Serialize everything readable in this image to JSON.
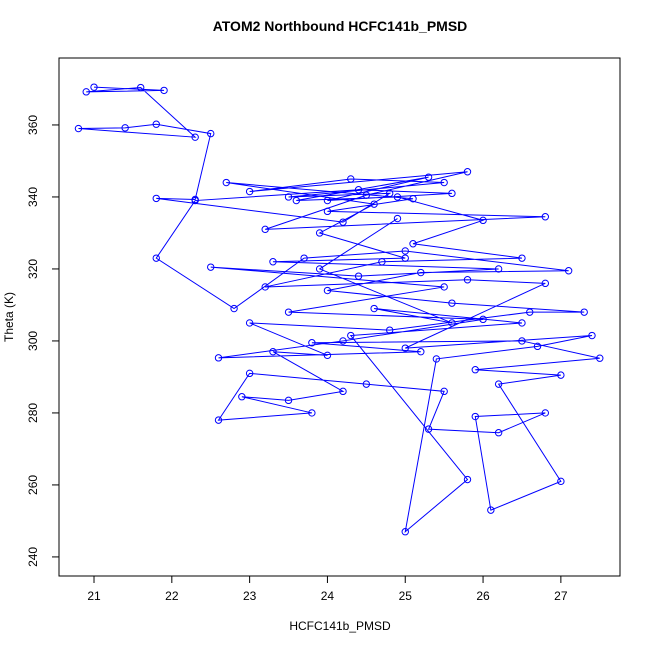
{
  "chart_data": {
    "type": "line",
    "title": "ATOM2 Northbound HCFC141b_PMSD",
    "x_label": "HCFC141b_PMSD",
    "y_label": "Theta (K)",
    "color": "#0000ff",
    "markers": true,
    "xlim": [
      20.55,
      27.76
    ],
    "ylim": [
      234.7,
      378.6
    ],
    "xticks": [
      21,
      22,
      23,
      24,
      25,
      26,
      27
    ],
    "yticks": [
      240,
      260,
      280,
      300,
      320,
      340,
      360
    ],
    "x": [
      21.0,
      21.9,
      20.9,
      21.6,
      22.3,
      20.8,
      21.4,
      21.8,
      22.5,
      22.3,
      21.8,
      24.2,
      24.8,
      23.5,
      25.5,
      24.3,
      23.0,
      25.8,
      24.5,
      23.2,
      26.8,
      24.0,
      25.1,
      22.7,
      24.6,
      23.9,
      25.0,
      23.3,
      26.2,
      24.4,
      22.5,
      25.5,
      23.5,
      26.0,
      24.2,
      22.6,
      25.2,
      23.8,
      26.5,
      27.5,
      25.9,
      27.0,
      26.2,
      27.0,
      26.1,
      25.9,
      26.8,
      26.2,
      25.3,
      25.5,
      24.5,
      23.0,
      22.6,
      23.8,
      22.9,
      23.5,
      24.2,
      23.3,
      24.0,
      23.0,
      24.8,
      26.6,
      27.3,
      25.6,
      24.0,
      25.2,
      27.1,
      25.0,
      23.7,
      22.8,
      21.8,
      22.3,
      24.4,
      25.6,
      24.0,
      25.3,
      23.6,
      24.9,
      26.0,
      25.1,
      26.5,
      24.7,
      23.2,
      25.8,
      26.8,
      25.0,
      27.4,
      26.7,
      25.4,
      25.0,
      25.8,
      24.3,
      26.5,
      24.6,
      25.6,
      23.9,
      24.9
    ],
    "values": [
      370.5,
      369.6,
      369.2,
      370.4,
      356.6,
      359.0,
      359.2,
      360.2,
      357.6,
      339.3,
      339.6,
      333.0,
      341.0,
      340.0,
      344.0,
      345.0,
      341.5,
      347.0,
      340.5,
      331.0,
      334.5,
      336.0,
      339.5,
      344.0,
      338.0,
      330.0,
      323.0,
      322.0,
      320.0,
      318.0,
      320.5,
      315.0,
      308.0,
      306.0,
      300.0,
      295.3,
      297.0,
      299.5,
      300.0,
      295.2,
      292.0,
      290.5,
      288.0,
      261.0,
      253.0,
      279.0,
      280.0,
      274.5,
      275.5,
      286.0,
      288.0,
      291.0,
      278.0,
      280.0,
      284.5,
      283.5,
      286.0,
      297.0,
      296.0,
      305.0,
      303.0,
      308.0,
      308.0,
      310.5,
      314.0,
      319.0,
      319.5,
      325.0,
      323.0,
      309.0,
      323.0,
      339.0,
      342.0,
      341.0,
      339.0,
      345.5,
      339.0,
      340.0,
      333.5,
      327.0,
      323.0,
      322.0,
      315.0,
      317.0,
      316.0,
      298.0,
      301.5,
      298.5,
      295.0,
      247.0,
      261.5,
      301.5,
      305.0,
      309.0,
      305.0,
      320.0,
      334.0
    ]
  }
}
